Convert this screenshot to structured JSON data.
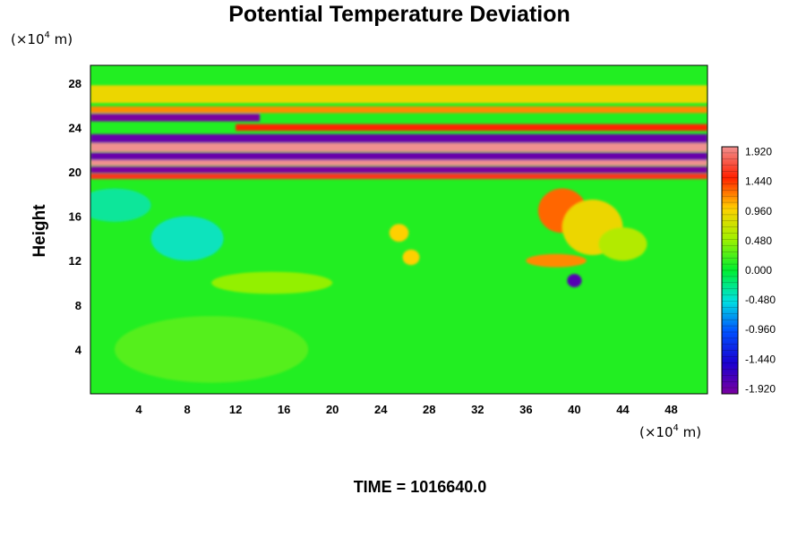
{
  "chart_data": {
    "type": "heatmap",
    "title": "Potential Temperature Deviation",
    "ylabel": "Height",
    "xlabel": "",
    "x_unit": {
      "prefix": "(×10",
      "exp": "4",
      "suffix": " m)"
    },
    "y_unit": {
      "prefix": "(×10",
      "exp": "4",
      "suffix": " m)"
    },
    "x_ticks": [
      4,
      8,
      12,
      16,
      20,
      24,
      28,
      32,
      36,
      40,
      44,
      48
    ],
    "y_ticks": [
      4,
      8,
      12,
      16,
      20,
      24,
      28
    ],
    "xlim": [
      0,
      51
    ],
    "ylim": [
      0,
      29.6
    ],
    "colorbar": {
      "levels": [
        1.92,
        1.44,
        0.96,
        0.48,
        0.0,
        -0.48,
        -0.96,
        -1.44,
        -1.92
      ],
      "labels": [
        "1.920",
        "1.440",
        "0.960",
        "0.480",
        "0.000",
        "-0.480",
        "-0.960",
        "-1.440",
        "-1.920"
      ],
      "range": [
        -2.0,
        2.0
      ]
    },
    "footer": "TIME = 1016640.0",
    "background_value": 0.0,
    "bands": [
      {
        "y_center": 24.9,
        "thickness": 0.7,
        "value": -2.0,
        "x_start": 0,
        "x_end": 14
      },
      {
        "y_center": 24.0,
        "thickness": 0.6,
        "value": 1.5,
        "x_start": 12,
        "x_end": 51
      },
      {
        "y_center": 23.0,
        "thickness": 0.8,
        "value": -1.9,
        "x_start": 0,
        "x_end": 51
      },
      {
        "y_center": 22.2,
        "thickness": 0.8,
        "value": 2.0,
        "x_start": 0,
        "x_end": 51
      },
      {
        "y_center": 21.4,
        "thickness": 0.7,
        "value": -1.9,
        "x_start": 0,
        "x_end": 51
      },
      {
        "y_center": 20.8,
        "thickness": 0.5,
        "value": 2.0,
        "x_start": 0,
        "x_end": 51
      },
      {
        "y_center": 20.2,
        "thickness": 0.6,
        "value": -2.0,
        "x_start": 0,
        "x_end": 51
      },
      {
        "y_center": 19.6,
        "thickness": 0.5,
        "value": 1.6,
        "x_start": 0,
        "x_end": 51
      },
      {
        "y_center": 27.0,
        "thickness": 1.6,
        "value": 0.9,
        "x_start": 0,
        "x_end": 51
      },
      {
        "y_center": 25.6,
        "thickness": 0.6,
        "value": 1.2,
        "x_start": 0,
        "x_end": 51
      }
    ],
    "blobs": [
      {
        "x": 39,
        "y": 16.5,
        "rx": 2.0,
        "ry": 2.0,
        "value": 1.3
      },
      {
        "x": 41.5,
        "y": 15.0,
        "rx": 2.5,
        "ry": 2.5,
        "value": 0.9
      },
      {
        "x": 44,
        "y": 13.5,
        "rx": 2.0,
        "ry": 1.5,
        "value": 0.6
      },
      {
        "x": 38.5,
        "y": 12.0,
        "rx": 2.5,
        "ry": 0.6,
        "value": 1.2
      },
      {
        "x": 40,
        "y": 10.2,
        "rx": 0.6,
        "ry": 0.6,
        "value": -1.8
      },
      {
        "x": 25.5,
        "y": 14.5,
        "rx": 0.8,
        "ry": 0.8,
        "value": 1.0
      },
      {
        "x": 26.5,
        "y": 12.3,
        "rx": 0.7,
        "ry": 0.7,
        "value": 1.0
      },
      {
        "x": 8,
        "y": 14.0,
        "rx": 3,
        "ry": 2,
        "value": -0.4
      },
      {
        "x": 15,
        "y": 10.0,
        "rx": 5,
        "ry": 1.0,
        "value": 0.45
      },
      {
        "x": 10,
        "y": 4.0,
        "rx": 8,
        "ry": 3,
        "value": 0.2
      },
      {
        "x": 2,
        "y": 17.0,
        "rx": 3,
        "ry": 1.5,
        "value": -0.3
      }
    ]
  }
}
